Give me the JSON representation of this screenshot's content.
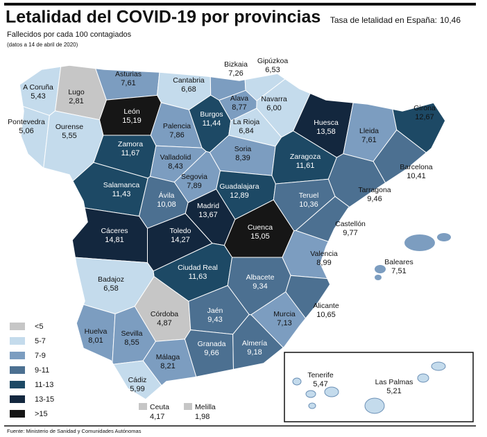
{
  "header": {
    "title": "Letalidad del COVID-19 por provincias",
    "subtitle": "Fallecidos por cada 100 contagiados",
    "note": "(datos a 14 de abril de 2020)",
    "national": {
      "label": "Tasa de letalidad en España:",
      "value": 10.46,
      "value_label": "10,46"
    }
  },
  "legend": [
    {
      "label": "<5",
      "color": "#c6c6c6"
    },
    {
      "label": "5-7",
      "color": "#c4dbec"
    },
    {
      "label": "7-9",
      "color": "#7c9dc0"
    },
    {
      "label": "9-11",
      "color": "#4c7091"
    },
    {
      "label": "11-13",
      "color": "#1d4965"
    },
    {
      "label": "13-15",
      "color": "#13273e"
    },
    {
      "label": ">15",
      "color": "#161616"
    }
  ],
  "provinces": [
    {
      "name": "A Coruña",
      "value": 5.43,
      "value_label": "5,43",
      "color": "#c4dbec"
    },
    {
      "name": "Lugo",
      "value": 2.81,
      "value_label": "2,81",
      "color": "#c6c6c6"
    },
    {
      "name": "Pontevedra",
      "value": 5.06,
      "value_label": "5,06",
      "color": "#c4dbec"
    },
    {
      "name": "Ourense",
      "value": 5.55,
      "value_label": "5,55",
      "color": "#c4dbec"
    },
    {
      "name": "Asturias",
      "value": 7.61,
      "value_label": "7,61",
      "color": "#7c9dc0"
    },
    {
      "name": "Cantabria",
      "value": 6.68,
      "value_label": "6,68",
      "color": "#c4dbec"
    },
    {
      "name": "Bizkaia",
      "value": 7.26,
      "value_label": "7,26",
      "color": "#7c9dc0"
    },
    {
      "name": "Gipúzkoa",
      "value": 6.53,
      "value_label": "6,53",
      "color": "#c4dbec"
    },
    {
      "name": "Alava",
      "value": 8.77,
      "value_label": "8,77",
      "color": "#7c9dc0"
    },
    {
      "name": "Navarra",
      "value": 6.0,
      "value_label": "6,00",
      "color": "#c4dbec"
    },
    {
      "name": "León",
      "value": 15.19,
      "value_label": "15,19",
      "color": "#161616"
    },
    {
      "name": "Palencia",
      "value": 7.86,
      "value_label": "7,86",
      "color": "#7c9dc0"
    },
    {
      "name": "Burgos",
      "value": 11.44,
      "value_label": "11,44",
      "color": "#1d4965"
    },
    {
      "name": "La Rioja",
      "value": 6.84,
      "value_label": "6,84",
      "color": "#c4dbec"
    },
    {
      "name": "Huesca",
      "value": 13.58,
      "value_label": "13,58",
      "color": "#13273e"
    },
    {
      "name": "Lleida",
      "value": 7.61,
      "value_label": "7,61",
      "color": "#7c9dc0"
    },
    {
      "name": "Girona",
      "value": 12.67,
      "value_label": "12,67",
      "color": "#1d4965"
    },
    {
      "name": "Barcelona",
      "value": 10.41,
      "value_label": "10,41",
      "color": "#4c7091"
    },
    {
      "name": "Zamora",
      "value": 11.67,
      "value_label": "11,67",
      "color": "#1d4965"
    },
    {
      "name": "Valladolid",
      "value": 8.43,
      "value_label": "8,43",
      "color": "#7c9dc0"
    },
    {
      "name": "Soria",
      "value": 8.39,
      "value_label": "8,39",
      "color": "#7c9dc0"
    },
    {
      "name": "Zaragoza",
      "value": 11.61,
      "value_label": "11,61",
      "color": "#1d4965"
    },
    {
      "name": "Tarragona",
      "value": 9.46,
      "value_label": "9,46",
      "color": "#4c7091"
    },
    {
      "name": "Segovia",
      "value": 7.89,
      "value_label": "7,89",
      "color": "#7c9dc0"
    },
    {
      "name": "Salamanca",
      "value": 11.43,
      "value_label": "11,43",
      "color": "#1d4965"
    },
    {
      "name": "Ávila",
      "value": 10.08,
      "value_label": "10,08",
      "color": "#4c7091"
    },
    {
      "name": "Guadalajara",
      "value": 12.89,
      "value_label": "12,89",
      "color": "#1d4965"
    },
    {
      "name": "Teruel",
      "value": 10.36,
      "value_label": "10,36",
      "color": "#4c7091"
    },
    {
      "name": "Madrid",
      "value": 13.67,
      "value_label": "13,67",
      "color": "#13273e"
    },
    {
      "name": "Cáceres",
      "value": 14.81,
      "value_label": "14,81",
      "color": "#13273e"
    },
    {
      "name": "Toledo",
      "value": 14.27,
      "value_label": "14,27",
      "color": "#13273e"
    },
    {
      "name": "Cuenca",
      "value": 15.05,
      "value_label": "15,05",
      "color": "#161616"
    },
    {
      "name": "Castellón",
      "value": 9.77,
      "value_label": "9,77",
      "color": "#4c7091"
    },
    {
      "name": "Valencia",
      "value": 8.99,
      "value_label": "8,99",
      "color": "#7c9dc0"
    },
    {
      "name": "Badajoz",
      "value": 6.58,
      "value_label": "6,58",
      "color": "#c4dbec"
    },
    {
      "name": "Ciudad Real",
      "value": 11.63,
      "value_label": "11,63",
      "color": "#1d4965"
    },
    {
      "name": "Albacete",
      "value": 9.34,
      "value_label": "9,34",
      "color": "#4c7091"
    },
    {
      "name": "Alicante",
      "value": 10.65,
      "value_label": "10,65",
      "color": "#4c7091"
    },
    {
      "name": "Córdoba",
      "value": 4.87,
      "value_label": "4,87",
      "color": "#c6c6c6"
    },
    {
      "name": "Jaén",
      "value": 9.43,
      "value_label": "9,43",
      "color": "#4c7091"
    },
    {
      "name": "Murcia",
      "value": 7.13,
      "value_label": "7,13",
      "color": "#7c9dc0"
    },
    {
      "name": "Huelva",
      "value": 8.01,
      "value_label": "8,01",
      "color": "#7c9dc0"
    },
    {
      "name": "Sevilla",
      "value": 8.55,
      "value_label": "8,55",
      "color": "#7c9dc0"
    },
    {
      "name": "Granada",
      "value": 9.66,
      "value_label": "9,66",
      "color": "#4c7091"
    },
    {
      "name": "Almería",
      "value": 9.18,
      "value_label": "9,18",
      "color": "#4c7091"
    },
    {
      "name": "Málaga",
      "value": 8.21,
      "value_label": "8,21",
      "color": "#7c9dc0"
    },
    {
      "name": "Cádiz",
      "value": 5.99,
      "value_label": "5,99",
      "color": "#c4dbec"
    },
    {
      "name": "Baleares",
      "value": 7.51,
      "value_label": "7,51",
      "color": "#7c9dc0"
    },
    {
      "name": "Tenerife",
      "value": 5.47,
      "value_label": "5,47",
      "color": "#c4dbec"
    },
    {
      "name": "Las Palmas",
      "value": 5.21,
      "value_label": "5,21",
      "color": "#c4dbec"
    },
    {
      "name": "Ceuta",
      "value": 4.17,
      "value_label": "4,17",
      "color": "#c6c6c6"
    },
    {
      "name": "Melilla",
      "value": 1.98,
      "value_label": "1,98",
      "color": "#c6c6c6"
    }
  ],
  "source": "Fuente: Ministerio de Sanidad y Comunidades Autónomas"
}
